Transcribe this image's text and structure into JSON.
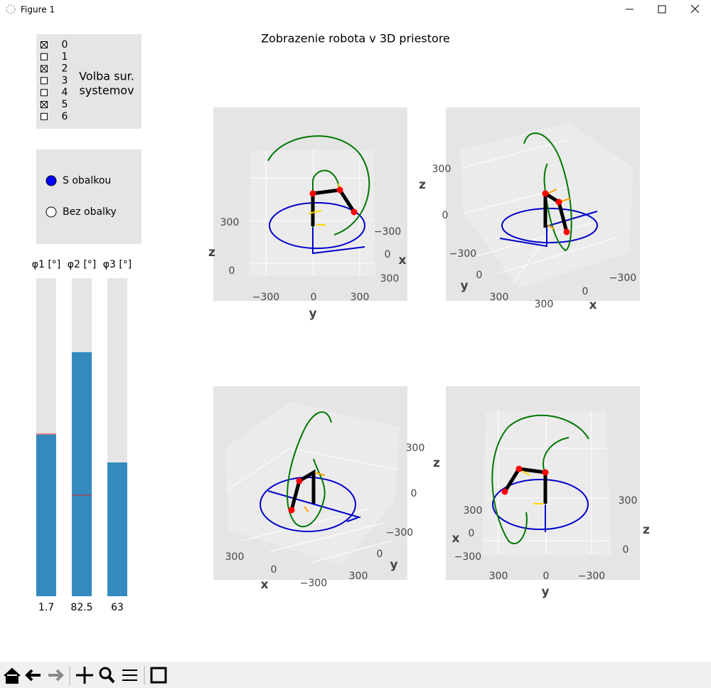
{
  "window": {
    "title": "Figure 1"
  },
  "figure_title": "Zobrazenie robota v 3D priestore",
  "checkboxes": {
    "title_lines": [
      "Volba sur.",
      "systemov"
    ],
    "items": [
      {
        "label": "0",
        "checked": true
      },
      {
        "label": "1",
        "checked": false
      },
      {
        "label": "2",
        "checked": true
      },
      {
        "label": "3",
        "checked": false
      },
      {
        "label": "4",
        "checked": false
      },
      {
        "label": "5",
        "checked": true
      },
      {
        "label": "6",
        "checked": false
      }
    ]
  },
  "radio": {
    "options": [
      {
        "label": "S obalkou",
        "selected": true
      },
      {
        "label": "Bez obalky",
        "selected": false
      }
    ]
  },
  "sliders": [
    {
      "label": "φ1 [°]",
      "value": 1.7
    },
    {
      "label": "φ2 [°]",
      "value": 82.5
    },
    {
      "label": "φ3 [°]",
      "value": 63
    }
  ],
  "plots": [
    {
      "x_label": "x",
      "y_label": "y",
      "z_label": "z",
      "x_ticks": [
        "−300",
        "0",
        "300"
      ],
      "y_ticks": [
        "−300",
        "0",
        "300"
      ],
      "z_ticks": [
        "0",
        "300"
      ]
    },
    {
      "x_label": "x",
      "y_label": "y",
      "z_label": "z",
      "x_ticks": [
        "−300",
        "0",
        "300"
      ],
      "y_ticks": [
        "−300",
        "0",
        "300"
      ],
      "z_ticks": [
        "0",
        "300"
      ]
    },
    {
      "x_label": "x",
      "y_label": "y",
      "z_label": "z",
      "x_ticks": [
        "300",
        "0",
        "−300"
      ],
      "y_ticks": [
        "−300",
        "0",
        "300"
      ],
      "z_ticks": [
        "300",
        "0"
      ]
    },
    {
      "x_label": "x",
      "y_label": "y",
      "z_label": "z",
      "x_ticks": [
        "300",
        "0",
        "−300"
      ],
      "y_ticks": [
        "300",
        "0",
        "−300"
      ],
      "z_ticks": [
        "300",
        "0"
      ]
    }
  ]
}
